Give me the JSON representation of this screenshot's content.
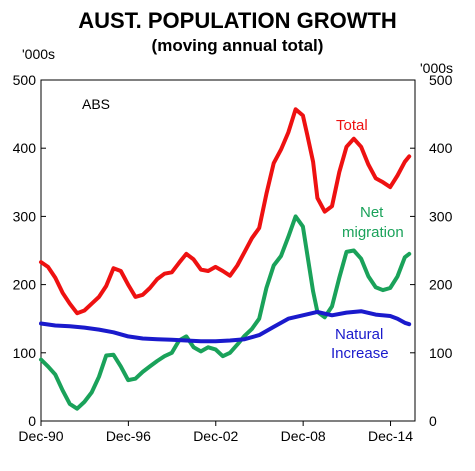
{
  "chart_data": {
    "type": "line",
    "title": "AUST. POPULATION GROWTH",
    "subtitle": "(moving annual total)",
    "y_unit_left": "'000s",
    "y_unit_right": "'000s",
    "source": "ABS",
    "ylim": [
      0,
      500
    ],
    "yticks": [
      0,
      100,
      200,
      300,
      400,
      500
    ],
    "xlim": [
      1990.92,
      2016.6
    ],
    "xticks": [
      {
        "label": "Dec-90",
        "x": 1990.92
      },
      {
        "label": "Dec-96",
        "x": 1996.92
      },
      {
        "label": "Dec-02",
        "x": 2002.92
      },
      {
        "label": "Dec-08",
        "x": 2008.92
      },
      {
        "label": "Dec-14",
        "x": 2014.92
      }
    ],
    "grid": false,
    "series": [
      {
        "name": "Total",
        "color": "#ee1111",
        "x": [
          1990.92,
          1991.4,
          1991.9,
          1992.4,
          1992.9,
          1993.4,
          1993.9,
          1994.4,
          1994.9,
          1995.4,
          1995.9,
          1996.4,
          1996.9,
          1997.4,
          1997.9,
          1998.4,
          1998.9,
          1999.4,
          1999.9,
          2000.4,
          2000.9,
          2001.4,
          2001.9,
          2002.4,
          2002.9,
          2003.4,
          2003.9,
          2004.4,
          2004.9,
          2005.4,
          2005.9,
          2006.4,
          2006.9,
          2007.4,
          2007.9,
          2008.4,
          2008.9,
          2009.2,
          2009.6,
          2009.9,
          2010.4,
          2010.9,
          2011.4,
          2011.9,
          2012.4,
          2012.9,
          2013.4,
          2013.9,
          2014.4,
          2014.9,
          2015.4,
          2015.9,
          2016.2
        ],
        "values": [
          233,
          226,
          210,
          188,
          172,
          158,
          162,
          172,
          182,
          198,
          224,
          220,
          200,
          182,
          185,
          195,
          208,
          216,
          218,
          232,
          245,
          237,
          222,
          220,
          226,
          220,
          213,
          228,
          248,
          268,
          283,
          333,
          378,
          398,
          423,
          457,
          448,
          420,
          380,
          327,
          307,
          315,
          365,
          402,
          414,
          402,
          376,
          356,
          350,
          343,
          360,
          380,
          388
        ]
      },
      {
        "name": "Net migration",
        "color": "#1aa25a",
        "x": [
          1990.92,
          1991.4,
          1991.9,
          1992.4,
          1992.9,
          1993.4,
          1993.9,
          1994.4,
          1994.9,
          1995.4,
          1995.9,
          1996.4,
          1996.9,
          1997.4,
          1997.9,
          1998.4,
          1998.9,
          1999.4,
          1999.9,
          2000.4,
          2000.9,
          2001.4,
          2001.9,
          2002.4,
          2002.9,
          2003.4,
          2003.9,
          2004.4,
          2004.9,
          2005.4,
          2005.9,
          2006.4,
          2006.9,
          2007.4,
          2007.9,
          2008.4,
          2008.9,
          2009.2,
          2009.6,
          2009.9,
          2010.4,
          2010.9,
          2011.4,
          2011.9,
          2012.4,
          2012.9,
          2013.4,
          2013.9,
          2014.4,
          2014.9,
          2015.4,
          2015.9,
          2016.2
        ],
        "values": [
          90,
          80,
          68,
          45,
          25,
          18,
          28,
          42,
          65,
          96,
          97,
          80,
          60,
          62,
          72,
          80,
          88,
          95,
          100,
          118,
          124,
          108,
          102,
          108,
          105,
          95,
          100,
          112,
          125,
          135,
          150,
          195,
          228,
          242,
          270,
          300,
          285,
          245,
          190,
          160,
          152,
          168,
          210,
          248,
          250,
          238,
          212,
          196,
          192,
          195,
          212,
          240,
          245
        ]
      },
      {
        "name": "Natural Increase",
        "color": "#1a1acc",
        "x": [
          1990.92,
          1991.9,
          1992.9,
          1993.9,
          1994.9,
          1995.9,
          1996.9,
          1997.9,
          1998.9,
          1999.9,
          2000.9,
          2001.9,
          2002.9,
          2003.9,
          2004.9,
          2005.9,
          2006.9,
          2007.9,
          2008.9,
          2009.9,
          2010.9,
          2011.9,
          2012.9,
          2013.9,
          2014.9,
          2015.4,
          2015.9,
          2016.2
        ],
        "values": [
          143,
          140,
          139,
          137,
          134,
          130,
          124,
          121,
          120,
          119,
          118,
          117,
          117,
          118,
          120,
          126,
          138,
          150,
          155,
          160,
          155,
          159,
          161,
          156,
          154,
          150,
          144,
          142
        ]
      }
    ],
    "annotations": [
      {
        "text": "Total",
        "series": "Total"
      },
      {
        "text": "Net",
        "series": "Net migration"
      },
      {
        "text": "migration",
        "series": "Net migration"
      },
      {
        "text": "Natural",
        "series": "Natural Increase"
      },
      {
        "text": "Increase",
        "series": "Natural Increase"
      }
    ]
  }
}
